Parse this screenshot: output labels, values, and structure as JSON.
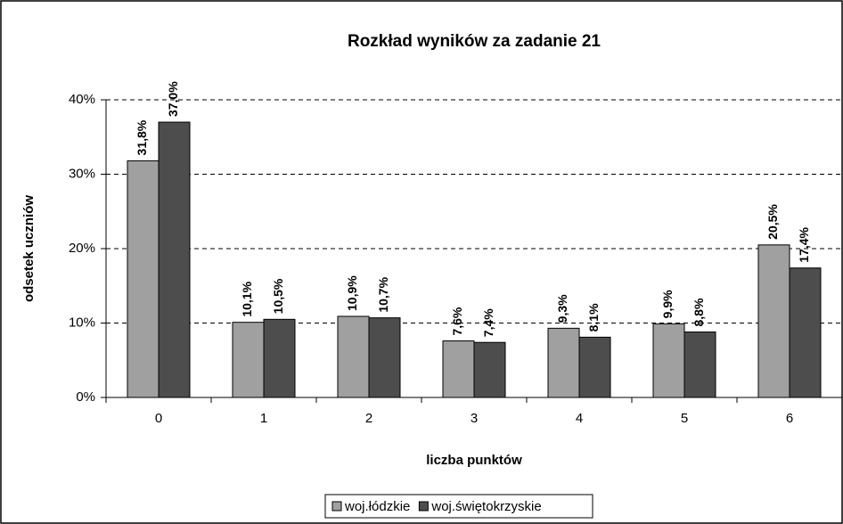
{
  "chart_data": {
    "type": "bar",
    "title": "Rozkład wyników za zadanie 21",
    "xlabel": "liczba punktów",
    "ylabel": "odsetek uczniów",
    "categories": [
      "0",
      "1",
      "2",
      "3",
      "4",
      "5",
      "6"
    ],
    "series": [
      {
        "name": "woj.łódzkie",
        "color": "#a0a0a0",
        "values": [
          31.8,
          10.1,
          10.9,
          7.6,
          9.3,
          9.9,
          20.5
        ],
        "value_labels": [
          "31,8%",
          "10,1%",
          "10,9%",
          "7,6%",
          "9,3%",
          "9,9%",
          "20,5%"
        ]
      },
      {
        "name": "woj.świętokrzyskie",
        "color": "#4d4d4d",
        "values": [
          37.0,
          10.5,
          10.7,
          7.4,
          8.1,
          8.8,
          17.4
        ],
        "value_labels": [
          "37,0%",
          "10,5%",
          "10,7%",
          "7,4%",
          "8,1%",
          "8,8%",
          "17,4%"
        ]
      }
    ],
    "ylim": [
      0,
      40
    ],
    "yticks": [
      {
        "value": 0,
        "label": "0%"
      },
      {
        "value": 10,
        "label": "10%"
      },
      {
        "value": 20,
        "label": "20%"
      },
      {
        "value": 30,
        "label": "30%"
      },
      {
        "value": 40,
        "label": "40%"
      }
    ],
    "grid": true,
    "legend": "bottom"
  }
}
